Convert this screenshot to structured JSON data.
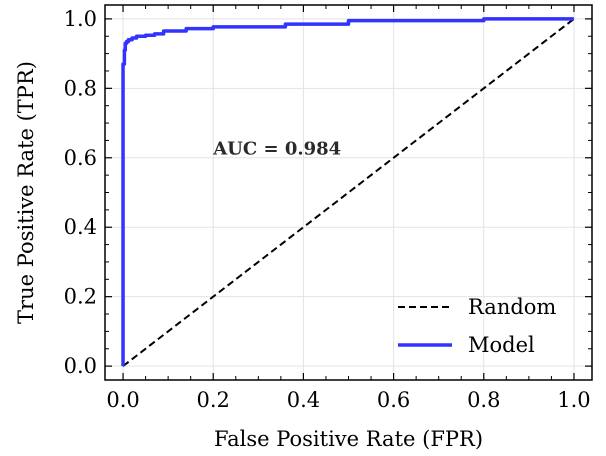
{
  "chart_data": {
    "type": "line",
    "xlabel": "False Positive Rate (FPR)",
    "ylabel": "True Positive Rate (TPR)",
    "xlim": [
      -0.04,
      1.04
    ],
    "ylim": [
      -0.04,
      1.04
    ],
    "xticks": [
      0.0,
      0.2,
      0.4,
      0.6,
      0.8,
      1.0
    ],
    "yticks": [
      0.0,
      0.2,
      0.4,
      0.6,
      0.8,
      1.0
    ],
    "xtick_labels": [
      "0.0",
      "0.2",
      "0.4",
      "0.6",
      "0.8",
      "1.0"
    ],
    "ytick_labels": [
      "0.0",
      "0.2",
      "0.4",
      "0.6",
      "0.8",
      "1.0"
    ],
    "grid": true,
    "legend_position": "bottom-right",
    "annotation": {
      "text": "AUC = 0.984",
      "x": 0.2,
      "y": 0.61
    },
    "series": [
      {
        "name": "Random",
        "style": "dashed",
        "color": "#000000",
        "x": [
          0.0,
          1.0
        ],
        "y": [
          0.0,
          1.0
        ]
      },
      {
        "name": "Model",
        "style": "solid",
        "color": "#3333ff",
        "x": [
          0.0,
          0.0,
          0.003,
          0.003,
          0.005,
          0.005,
          0.008,
          0.008,
          0.012,
          0.012,
          0.02,
          0.02,
          0.03,
          0.03,
          0.05,
          0.05,
          0.07,
          0.07,
          0.09,
          0.09,
          0.14,
          0.14,
          0.2,
          0.2,
          0.36,
          0.36,
          0.5,
          0.5,
          0.8,
          0.8,
          1.0
        ],
        "y": [
          0.0,
          0.87,
          0.87,
          0.91,
          0.91,
          0.93,
          0.93,
          0.935,
          0.935,
          0.94,
          0.94,
          0.945,
          0.945,
          0.95,
          0.95,
          0.953,
          0.953,
          0.957,
          0.957,
          0.965,
          0.965,
          0.972,
          0.972,
          0.977,
          0.977,
          0.985,
          0.985,
          0.995,
          0.995,
          1.0,
          1.0
        ]
      }
    ]
  }
}
